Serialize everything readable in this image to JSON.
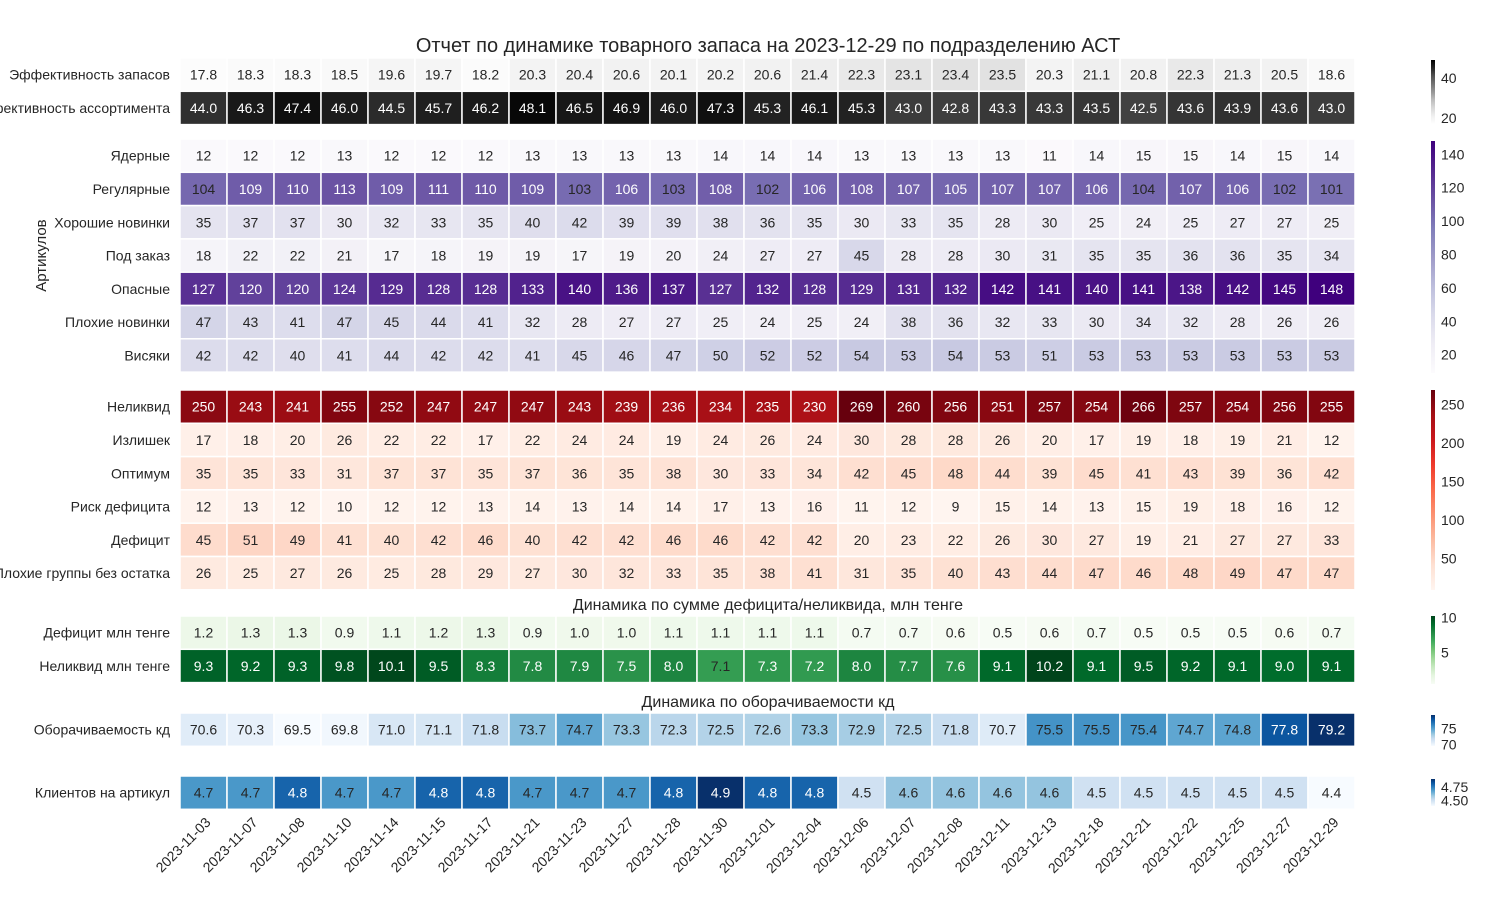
{
  "chart_data": {
    "type": "heatmap",
    "title": "Отчет по динамике товарного запаса на 2023-12-29 по подразделению АСТ",
    "dates": [
      "2023-11-03",
      "2023-11-07",
      "2023-11-08",
      "2023-11-10",
      "2023-11-14",
      "2023-11-15",
      "2023-11-17",
      "2023-11-21",
      "2023-11-23",
      "2023-11-27",
      "2023-11-28",
      "2023-11-30",
      "2023-12-01",
      "2023-12-04",
      "2023-12-06",
      "2023-12-07",
      "2023-12-08",
      "2023-12-11",
      "2023-12-13",
      "2023-12-18",
      "2023-12-21",
      "2023-12-22",
      "2023-12-25",
      "2023-12-27",
      "2023-12-29"
    ],
    "blocks": [
      {
        "id": "efficiency",
        "colormap": "Greys",
        "vmin": 17,
        "vmax": 49,
        "colorbar_ticks": [
          "20",
          "40"
        ],
        "rows": [
          {
            "label": "Эффективность запасов",
            "values": [
              17.8,
              18.3,
              18.3,
              18.5,
              19.6,
              19.7,
              18.2,
              20.3,
              20.4,
              20.6,
              20.1,
              20.2,
              20.6,
              21.4,
              22.3,
              23.1,
              23.4,
              23.5,
              20.3,
              21.1,
              20.8,
              22.3,
              21.3,
              20.5,
              18.6
            ]
          },
          {
            "label": "Эффективность ассортимента",
            "values": [
              44.0,
              46.3,
              47.4,
              46.0,
              44.5,
              45.7,
              46.2,
              48.1,
              46.5,
              46.9,
              46.0,
              47.3,
              45.3,
              46.1,
              45.3,
              43.0,
              42.8,
              43.3,
              43.3,
              43.5,
              42.5,
              43.6,
              43.9,
              43.6,
              43.0
            ]
          }
        ]
      },
      {
        "id": "articles",
        "colormap": "Purples",
        "ylabel": "Артикулов",
        "vmin": 9,
        "vmax": 148,
        "colorbar_ticks": [
          "20",
          "40",
          "60",
          "80",
          "100",
          "120",
          "140"
        ],
        "rows": [
          {
            "label": "Ядерные",
            "values": [
              12,
              12,
              12,
              13,
              12,
              12,
              12,
              13,
              13,
              13,
              13,
              14,
              14,
              14,
              13,
              13,
              13,
              13,
              11,
              14,
              15,
              15,
              14,
              15,
              14
            ]
          },
          {
            "label": "Регулярные",
            "values": [
              104,
              109,
              110,
              113,
              109,
              111,
              110,
              109,
              103,
              106,
              103,
              108,
              102,
              106,
              108,
              107,
              105,
              107,
              107,
              106,
              104,
              107,
              106,
              102,
              101
            ]
          },
          {
            "label": "Хорошие новинки",
            "values": [
              35,
              37,
              37,
              30,
              32,
              33,
              35,
              40,
              42,
              39,
              39,
              38,
              36,
              35,
              30,
              33,
              35,
              28,
              30,
              25,
              24,
              25,
              27,
              27,
              25
            ]
          },
          {
            "label": "Под заказ",
            "values": [
              18,
              22,
              22,
              21,
              17,
              18,
              19,
              19,
              17,
              19,
              20,
              24,
              27,
              27,
              45,
              28,
              28,
              30,
              31,
              35,
              35,
              36,
              36,
              35,
              34
            ]
          },
          {
            "label": "Опасные",
            "values": [
              127,
              120,
              120,
              124,
              129,
              128,
              128,
              133,
              140,
              136,
              137,
              127,
              132,
              128,
              129,
              131,
              132,
              142,
              141,
              140,
              141,
              138,
              142,
              145,
              148
            ]
          },
          {
            "label": "Плохие новинки",
            "values": [
              47,
              43,
              41,
              47,
              45,
              44,
              41,
              32,
              28,
              27,
              27,
              25,
              24,
              25,
              24,
              38,
              36,
              32,
              33,
              30,
              34,
              32,
              28,
              26,
              26
            ]
          },
          {
            "label": "Висяки",
            "values": [
              42,
              42,
              40,
              41,
              44,
              42,
              42,
              41,
              45,
              46,
              47,
              50,
              52,
              52,
              54,
              53,
              54,
              53,
              51,
              53,
              53,
              53,
              53,
              53,
              53
            ]
          }
        ]
      },
      {
        "id": "groups",
        "colormap": "Reds",
        "vmin": 9,
        "vmax": 269,
        "colorbar_ticks": [
          "50",
          "100",
          "150",
          "200",
          "250"
        ],
        "rows": [
          {
            "label": "Неликвид",
            "values": [
              250,
              243,
              241,
              255,
              252,
              247,
              247,
              247,
              243,
              239,
              236,
              234,
              235,
              230,
              269,
              260,
              256,
              251,
              257,
              254,
              266,
              257,
              254,
              256,
              255
            ]
          },
          {
            "label": "Излишек",
            "values": [
              17,
              18,
              20,
              26,
              22,
              22,
              17,
              22,
              24,
              24,
              19,
              24,
              26,
              24,
              30,
              28,
              28,
              26,
              20,
              17,
              19,
              18,
              19,
              21,
              12
            ]
          },
          {
            "label": "Оптимум",
            "values": [
              35,
              35,
              33,
              31,
              37,
              37,
              35,
              37,
              36,
              35,
              38,
              30,
              33,
              34,
              42,
              45,
              48,
              44,
              39,
              45,
              41,
              43,
              39,
              36,
              42
            ]
          },
          {
            "label": "Риск дефицита",
            "values": [
              12,
              13,
              12,
              10,
              12,
              12,
              13,
              14,
              13,
              14,
              14,
              17,
              13,
              16,
              11,
              12,
              9,
              15,
              14,
              13,
              15,
              19,
              18,
              16,
              12
            ]
          },
          {
            "label": "Дефицит",
            "values": [
              45,
              51,
              49,
              41,
              40,
              42,
              46,
              40,
              42,
              42,
              46,
              46,
              42,
              42,
              20,
              23,
              22,
              26,
              30,
              27,
              19,
              21,
              27,
              27,
              33
            ]
          },
          {
            "label": "Плохие группы без остатка",
            "values": [
              26,
              25,
              27,
              26,
              25,
              28,
              29,
              27,
              30,
              32,
              33,
              35,
              38,
              41,
              31,
              35,
              40,
              43,
              44,
              47,
              46,
              48,
              49,
              47,
              47
            ]
          }
        ]
      },
      {
        "id": "money",
        "colormap": "Greens",
        "subtitle": "Динамика по сумме дефицита/неликвида, млн тенге",
        "vmin": 0.5,
        "vmax": 10.2,
        "colorbar_ticks": [
          "5",
          "10"
        ],
        "rows": [
          {
            "label": "Дефицит млн тенге",
            "values": [
              1.2,
              1.3,
              1.3,
              0.9,
              1.1,
              1.2,
              1.3,
              0.9,
              1.0,
              1.0,
              1.1,
              1.1,
              1.1,
              1.1,
              0.7,
              0.7,
              0.6,
              0.5,
              0.6,
              0.7,
              0.5,
              0.5,
              0.5,
              0.6,
              0.7
            ]
          },
          {
            "label": "Неликвид млн тенге",
            "values": [
              9.3,
              9.2,
              9.3,
              9.8,
              10.1,
              9.5,
              8.3,
              7.8,
              7.9,
              7.5,
              8.0,
              7.1,
              7.3,
              7.2,
              8.0,
              7.7,
              7.6,
              9.1,
              10.2,
              9.1,
              9.5,
              9.2,
              9.1,
              9.0,
              9.1
            ]
          }
        ]
      },
      {
        "id": "turnover",
        "colormap": "Blues",
        "subtitle": "Динамика по оборачиваемости кд",
        "vmin": 69.5,
        "vmax": 79.2,
        "colorbar_ticks": [
          "70",
          "75"
        ],
        "rows": [
          {
            "label": "Оборачиваемость кд",
            "values": [
              70.6,
              70.3,
              69.5,
              69.8,
              71.0,
              71.1,
              71.8,
              73.7,
              74.7,
              73.3,
              72.3,
              72.5,
              72.6,
              73.3,
              72.9,
              72.5,
              71.8,
              70.7,
              75.5,
              75.5,
              75.4,
              74.7,
              74.8,
              77.8,
              79.2
            ]
          }
        ]
      },
      {
        "id": "clients",
        "colormap": "Blues",
        "vmin": 4.4,
        "vmax": 4.9,
        "colorbar_ticks": [
          "4.50",
          "4.75"
        ],
        "rows": [
          {
            "label": "Клиентов на артикул",
            "values": [
              4.7,
              4.7,
              4.8,
              4.7,
              4.7,
              4.8,
              4.8,
              4.7,
              4.7,
              4.7,
              4.8,
              4.9,
              4.8,
              4.8,
              4.5,
              4.6,
              4.6,
              4.6,
              4.6,
              4.5,
              4.5,
              4.5,
              4.5,
              4.5,
              4.4
            ]
          }
        ]
      }
    ]
  }
}
